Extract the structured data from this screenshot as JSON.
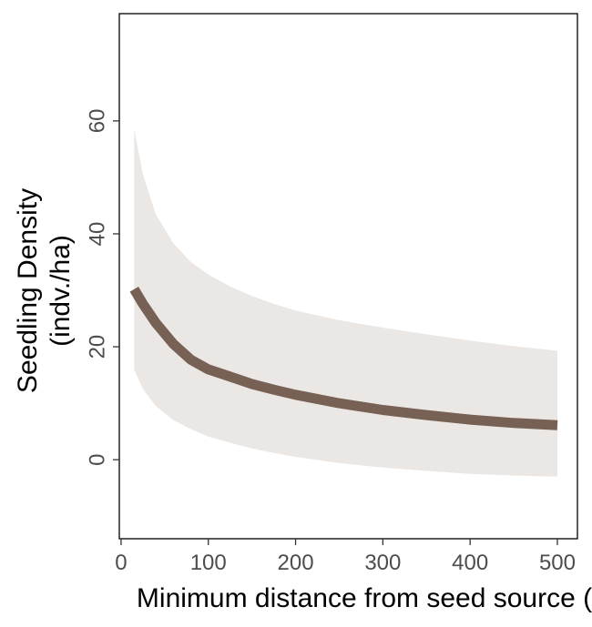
{
  "chart_data": {
    "type": "line",
    "title": "",
    "xlabel": "Minimum distance from seed source (m)",
    "ylabel_lines": [
      "Seedling Density",
      "(indv./ha)"
    ],
    "xlim": [
      -2,
      523
    ],
    "ylim": [
      -14,
      79
    ],
    "x_ticks": [
      0,
      100,
      200,
      300,
      400,
      500
    ],
    "y_ticks": [
      0,
      20,
      40,
      60
    ],
    "grid": false,
    "legend": "none",
    "series": [
      {
        "x": [
          15,
          25,
          40,
          60,
          80,
          100,
          125,
          150,
          175,
          200,
          250,
          300,
          350,
          400,
          450,
          500
        ],
        "y": [
          30.2,
          27.6,
          24.2,
          20.5,
          17.7,
          16.0,
          14.7,
          13.4,
          12.4,
          11.5,
          10.0,
          8.8,
          7.9,
          7.1,
          6.5,
          6.1
        ],
        "lower": [
          15.9,
          12.5,
          9.5,
          7.0,
          5.4,
          4.1,
          3.0,
          2.0,
          1.2,
          0.5,
          -0.6,
          -1.4,
          -2.0,
          -2.5,
          -2.8,
          -3.0
        ],
        "upper": [
          58.6,
          50.6,
          43.4,
          38.3,
          35.0,
          32.8,
          30.7,
          29.0,
          27.6,
          26.4,
          24.7,
          23.4,
          22.2,
          21.1,
          20.1,
          19.3
        ]
      }
    ],
    "colors": {
      "line": "#776155",
      "ribbon": "#ebe7e4",
      "frame": "#000000",
      "tick_label": "#4d4d4d"
    }
  }
}
